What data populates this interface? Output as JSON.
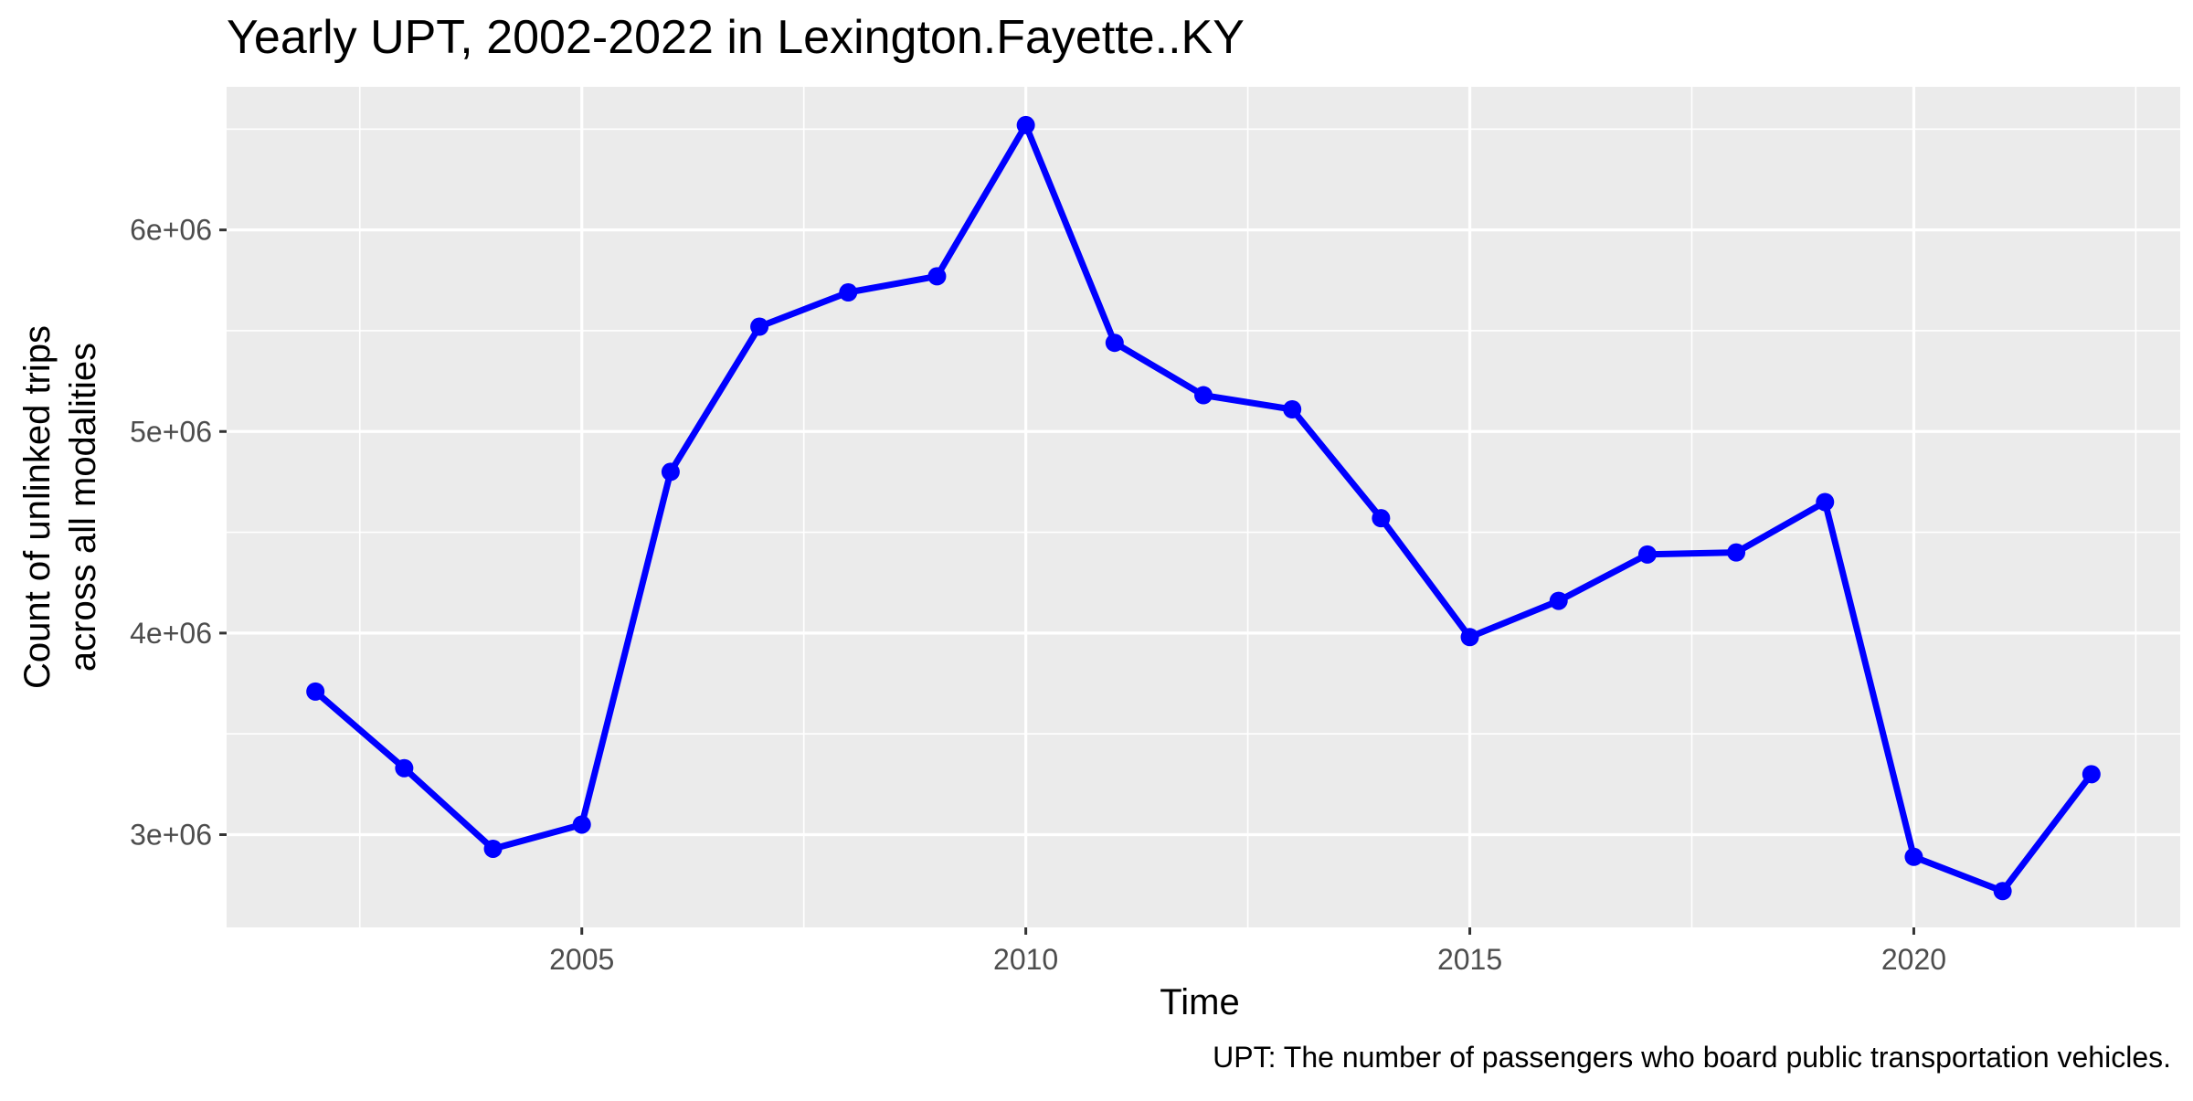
{
  "chart_data": {
    "type": "line",
    "title": "Yearly UPT, 2002-2022 in Lexington.Fayette..KY",
    "xlabel": "Time",
    "ylabel_lines": [
      "Count of unlinked trips",
      "across all modalities"
    ],
    "caption": "UPT: The number of passengers who board public transportation vehicles.",
    "x_ticks": [
      2005,
      2010,
      2015,
      2020
    ],
    "x_tick_labels": [
      "2005",
      "2010",
      "2015",
      "2020"
    ],
    "y_ticks": [
      3000000,
      4000000,
      5000000,
      6000000
    ],
    "y_tick_labels": [
      "3e+06",
      "4e+06",
      "5e+06",
      "6e+06"
    ],
    "xlim": [
      2001,
      2023
    ],
    "ylim": [
      2540000,
      6710000
    ],
    "grid": true,
    "legend": "none",
    "series": [
      {
        "color": "#0000ff",
        "x": [
          2002,
          2003,
          2004,
          2005,
          2006,
          2007,
          2008,
          2009,
          2010,
          2011,
          2012,
          2013,
          2014,
          2015,
          2016,
          2017,
          2018,
          2019,
          2020,
          2021,
          2022
        ],
        "y": [
          3710000,
          3330000,
          2930000,
          3050000,
          4800000,
          5520000,
          5690000,
          5770000,
          6520000,
          5440000,
          5180000,
          5110000,
          4570000,
          3980000,
          4160000,
          4390000,
          4400000,
          4650000,
          2890000,
          2720000,
          3300000
        ]
      }
    ]
  }
}
